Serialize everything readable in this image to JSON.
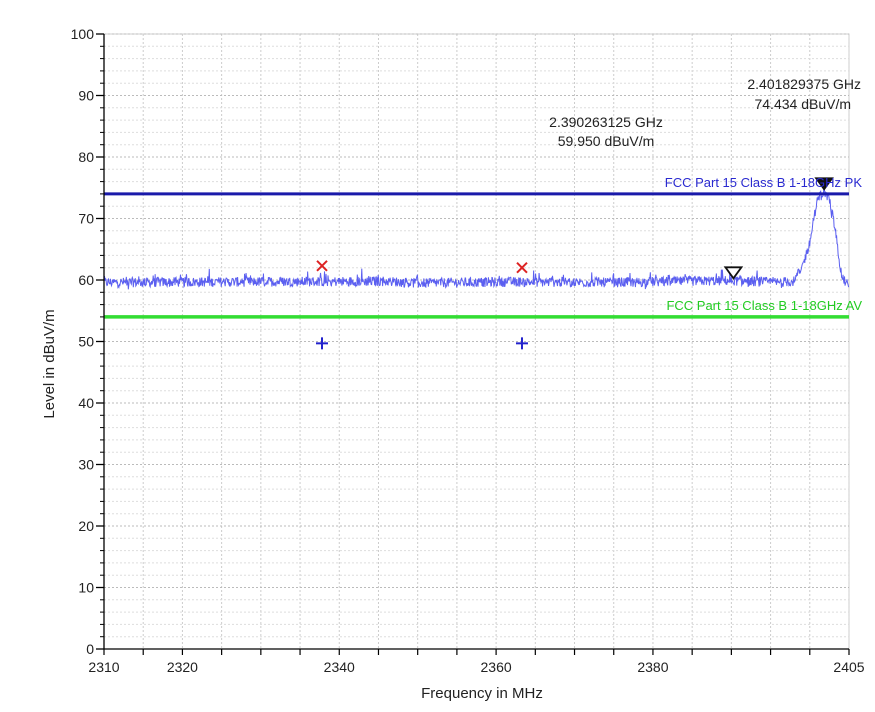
{
  "chart_data": {
    "type": "line",
    "xlabel": "Frequency in MHz",
    "ylabel": "Level in dBuV/m",
    "xlim": [
      2310,
      2405
    ],
    "ylim": [
      0,
      100
    ],
    "x_ticks": [
      2310,
      2320,
      2340,
      2360,
      2380,
      2405
    ],
    "y_ticks": [
      0,
      10,
      20,
      30,
      40,
      50,
      60,
      70,
      80,
      90,
      100
    ],
    "grid": true,
    "colors": {
      "trace": "#5b5ff0",
      "pk_limit": "#1a1aaa",
      "av_limit": "#33dd33",
      "x_marker": "#dd2222",
      "plus_marker": "#2222cc",
      "marker": "#111111"
    },
    "limit_lines": [
      {
        "label": "FCC Part 15 Class B 1-18GHz PK",
        "value": 74
      },
      {
        "label": "FCC Part 15 Class B 1-18GHz AV",
        "value": 54
      }
    ],
    "series": [
      {
        "noise_floor_level": 59.6,
        "x": [
          2310,
          2346,
          2350,
          2362,
          2375,
          2384,
          2390,
          2396,
          2398,
          2399,
          2400,
          2400.5,
          2401,
          2401.83,
          2402.5,
          2403,
          2403.5,
          2404,
          2404.5,
          2405
        ],
        "y": [
          59.6,
          59.8,
          59.5,
          59.7,
          59.6,
          59.8,
          59.9,
          59.6,
          59.8,
          62,
          66,
          70,
          73,
          74.4,
          73,
          70,
          66,
          61,
          59.6,
          59.5
        ]
      }
    ],
    "x_markers": [
      {
        "x": 2337.8,
        "y": 62.3
      },
      {
        "x": 2363.3,
        "y": 62.0
      }
    ],
    "plus_markers": [
      {
        "x": 2337.8,
        "y": 49.7
      },
      {
        "x": 2363.3,
        "y": 49.7
      }
    ],
    "triangle_markers": [
      {
        "x": 2390.263125,
        "y": 59.95,
        "filled": false
      },
      {
        "x": 2401.829375,
        "y": 74.434,
        "filled": true
      }
    ],
    "annotations": [
      {
        "freq": "2.390263125 GHz",
        "level": "59.950 dBuV/m"
      },
      {
        "freq": "2.401829375 GHz",
        "level": "74.434 dBuV/m"
      }
    ]
  }
}
